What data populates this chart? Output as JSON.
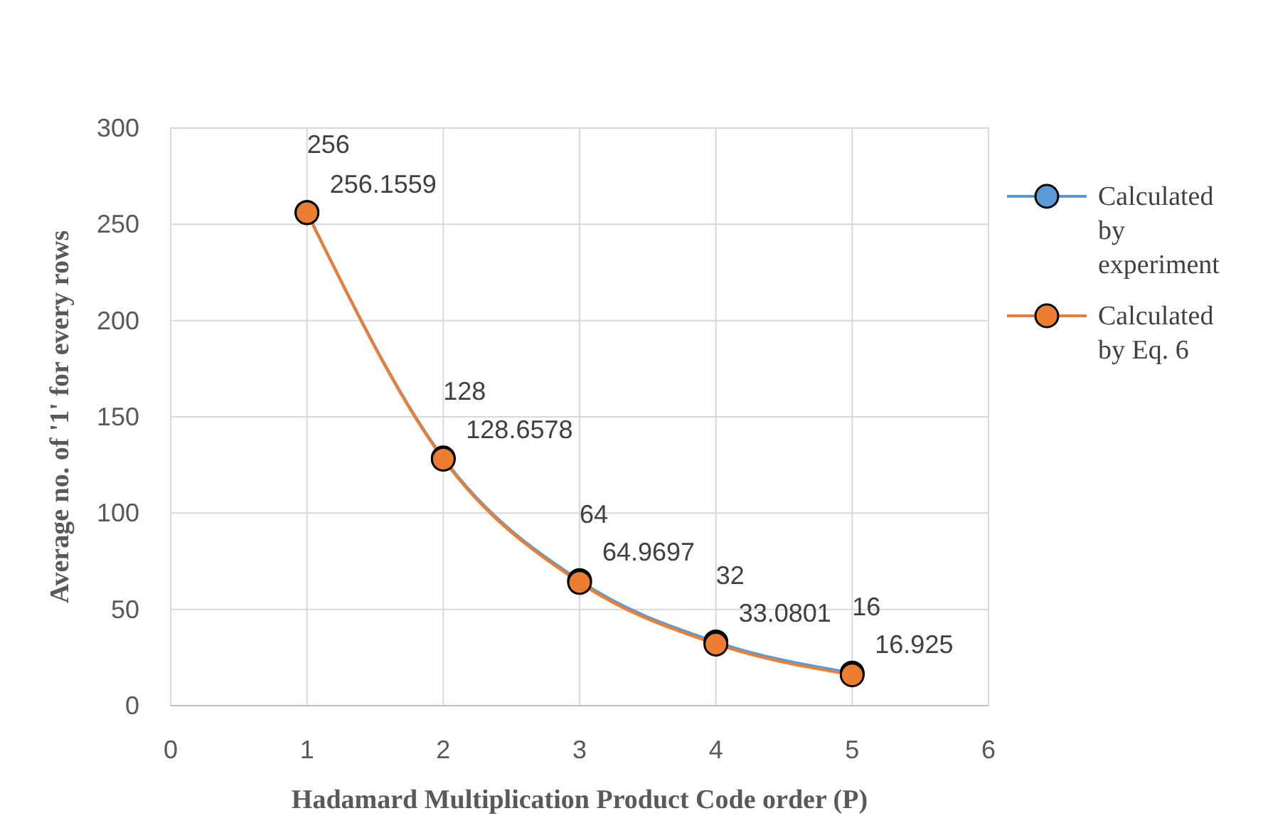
{
  "chart_data": {
    "type": "line",
    "xlabel": "Hadamard Multiplication Product Code order (P)",
    "ylabel": "Average no. of '1' for every rows",
    "x": [
      1,
      2,
      3,
      4,
      5
    ],
    "series": [
      {
        "name": "Calculated by experiment",
        "color": "#5b9bd5",
        "values": [
          256.1559,
          128.6578,
          64.9697,
          33.0801,
          16.925
        ]
      },
      {
        "name": "Calculated by Eq. 6",
        "color": "#ed7d31",
        "values": [
          256,
          128,
          64,
          32,
          16
        ]
      }
    ],
    "xlim": [
      0,
      6
    ],
    "xticks": [
      0,
      1,
      2,
      3,
      4,
      5,
      6
    ],
    "ylim": [
      0,
      300
    ],
    "yticks": [
      0,
      50,
      100,
      150,
      200,
      250,
      300
    ],
    "grid": true,
    "legend": "right",
    "marker": "circle",
    "line_style": "solid",
    "data_labels": true
  }
}
